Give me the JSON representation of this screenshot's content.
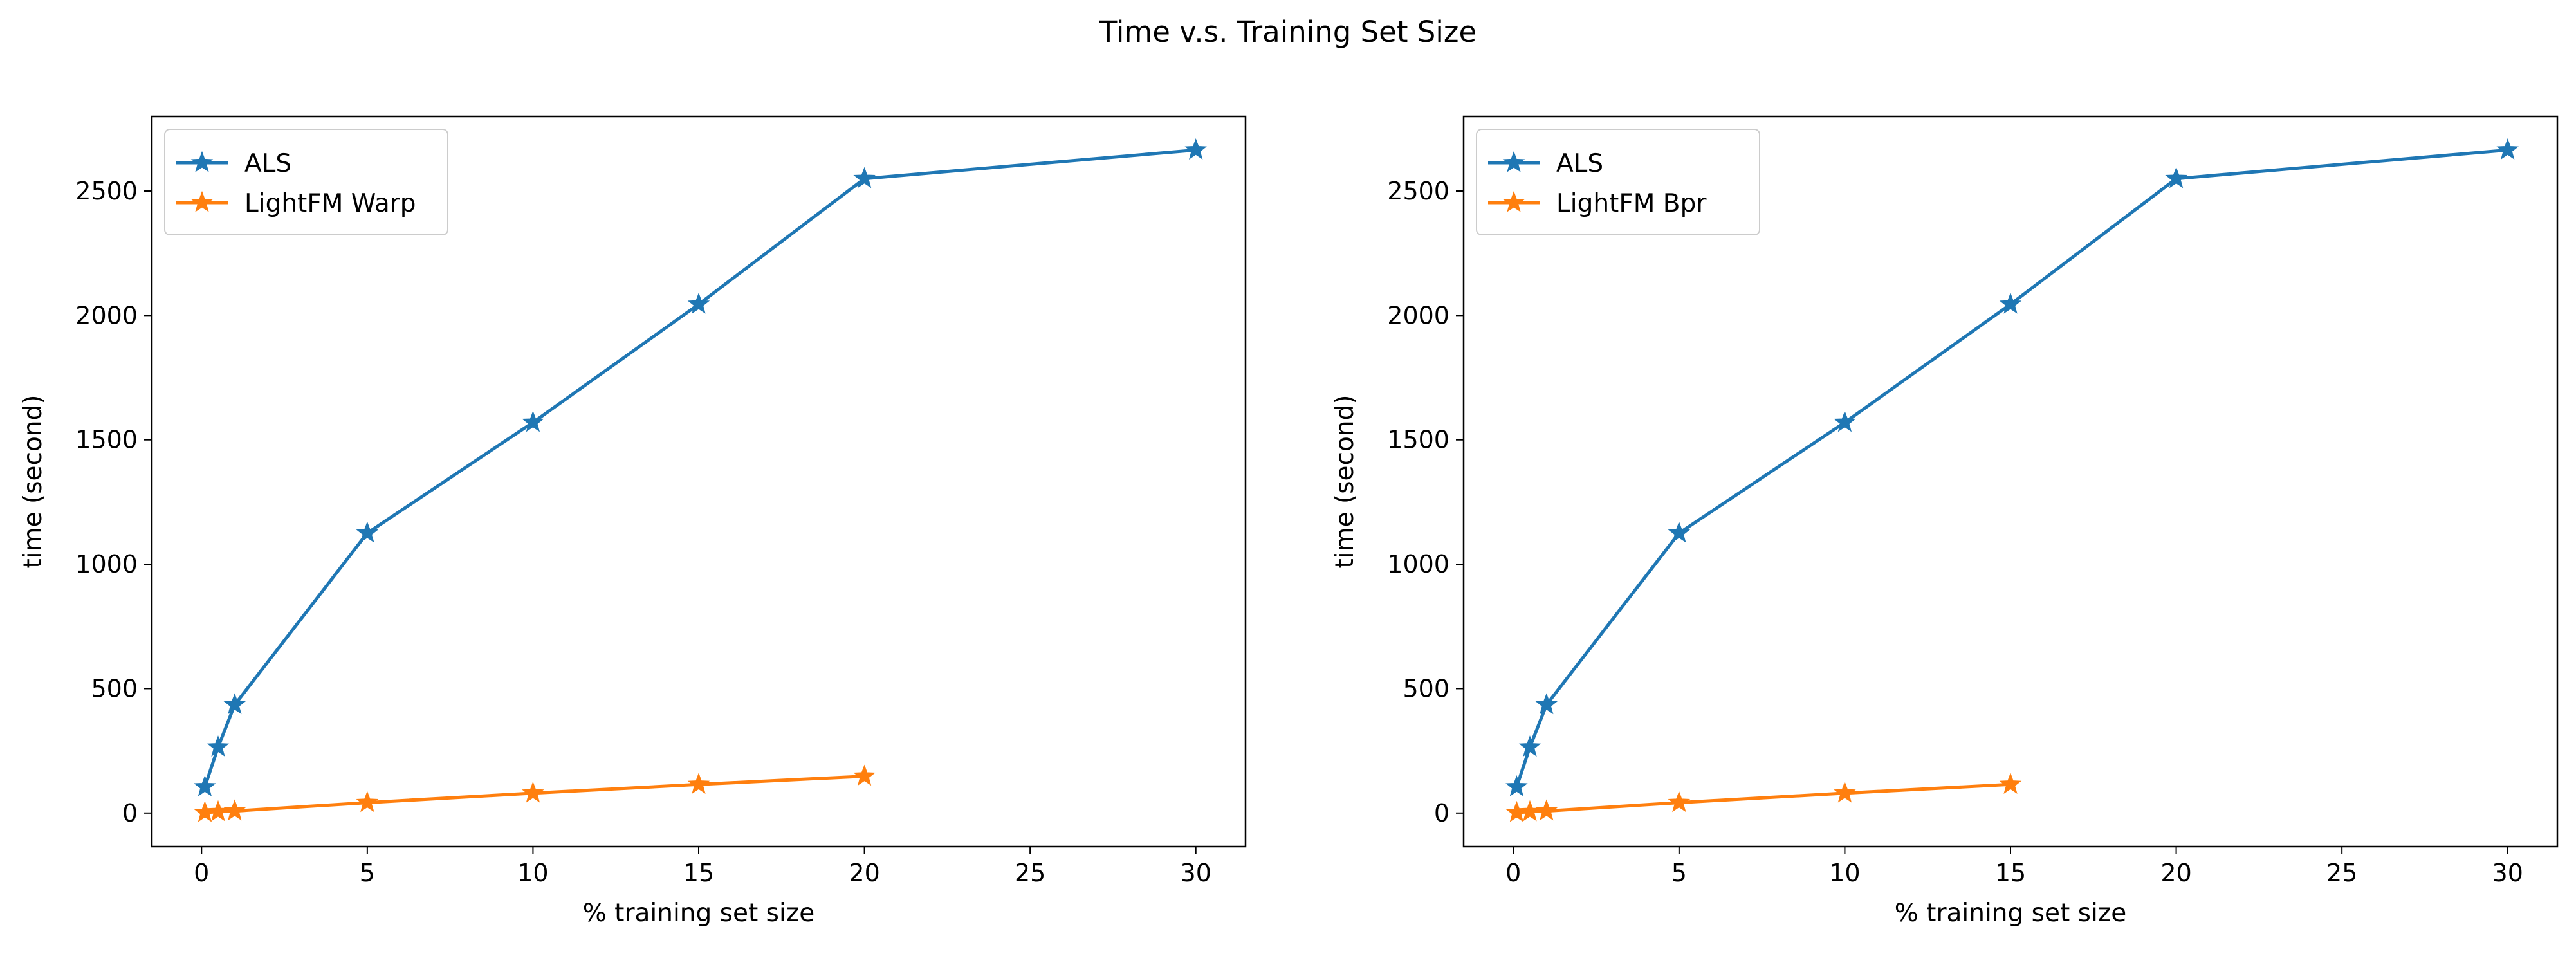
{
  "figure": {
    "title": "Time v.s. Training Set Size"
  },
  "chart_data": [
    {
      "type": "line",
      "title": "",
      "xlabel": "% training set size",
      "ylabel": "time (second)",
      "xlim": [
        -1.5,
        31.5
      ],
      "ylim": [
        -135,
        2800
      ],
      "xticks": [
        0,
        5,
        10,
        15,
        20,
        25,
        30
      ],
      "yticks": [
        0,
        500,
        1000,
        1500,
        2000,
        2500
      ],
      "grid": false,
      "legend_position": "top-left",
      "series": [
        {
          "name": "ALS",
          "color": "#1f77b4",
          "marker": "star",
          "x": [
            0.1,
            0.5,
            1,
            5,
            10,
            15,
            20,
            30
          ],
          "y": [
            105,
            265,
            435,
            1125,
            1570,
            2045,
            2550,
            2665
          ]
        },
        {
          "name": "LightFM Warp",
          "color": "#ff7f0e",
          "marker": "star",
          "x": [
            0.1,
            0.5,
            1,
            5,
            10,
            15,
            20
          ],
          "y": [
            2,
            5,
            8,
            42,
            80,
            115,
            148
          ]
        }
      ]
    },
    {
      "type": "line",
      "title": "",
      "xlabel": "% training set size",
      "ylabel": "time (second)",
      "xlim": [
        -1.5,
        31.5
      ],
      "ylim": [
        -135,
        2800
      ],
      "xticks": [
        0,
        5,
        10,
        15,
        20,
        25,
        30
      ],
      "yticks": [
        0,
        500,
        1000,
        1500,
        2000,
        2500
      ],
      "grid": false,
      "legend_position": "top-left",
      "series": [
        {
          "name": "ALS",
          "color": "#1f77b4",
          "marker": "star",
          "x": [
            0.1,
            0.5,
            1,
            5,
            10,
            15,
            20,
            30
          ],
          "y": [
            105,
            265,
            435,
            1125,
            1570,
            2045,
            2550,
            2665
          ]
        },
        {
          "name": "LightFM Bpr",
          "color": "#ff7f0e",
          "marker": "star",
          "x": [
            0.1,
            0.5,
            1,
            5,
            10,
            15
          ],
          "y": [
            2,
            5,
            8,
            42,
            80,
            115
          ]
        }
      ]
    }
  ]
}
